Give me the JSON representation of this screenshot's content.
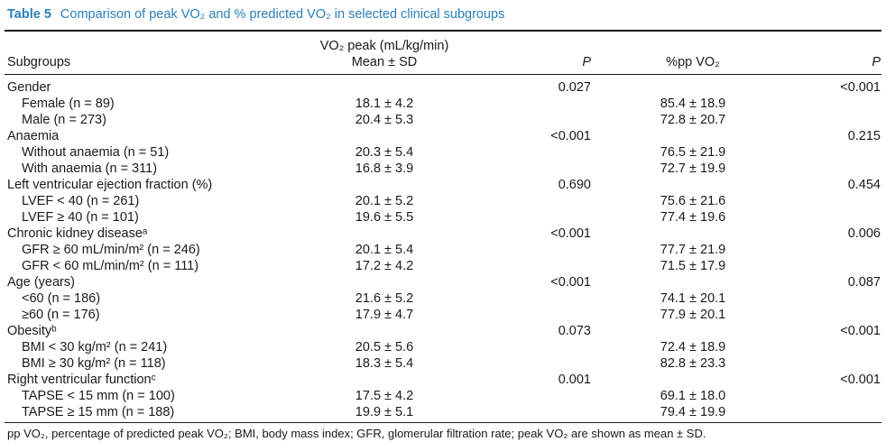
{
  "caption": {
    "label": "Table 5",
    "title": "Comparison of peak VO₂ and % predicted VO₂ in selected clinical subgroups"
  },
  "headers": {
    "subgroups": "Subgroups",
    "vo2_line1": "VO₂ peak (mL/kg/min)",
    "vo2_line2": "Mean ± SD",
    "p1": "P",
    "pp": "%pp VO₂",
    "p2": "P"
  },
  "rows": [
    {
      "label": "Gender",
      "indent": false,
      "vo2": "",
      "p1": "0.027",
      "pp": "",
      "p2": "<0.001"
    },
    {
      "label": "Female (n = 89)",
      "indent": true,
      "vo2": "18.1 ± 4.2",
      "p1": "",
      "pp": "85.4 ± 18.9",
      "p2": ""
    },
    {
      "label": "Male (n = 273)",
      "indent": true,
      "vo2": "20.4 ± 5.3",
      "p1": "",
      "pp": "72.8 ± 20.7",
      "p2": ""
    },
    {
      "label": "Anaemia",
      "indent": false,
      "vo2": "",
      "p1": "<0.001",
      "pp": "",
      "p2": "0.215"
    },
    {
      "label": "Without anaemia (n = 51)",
      "indent": true,
      "vo2": "20.3 ± 5.4",
      "p1": "",
      "pp": "76.5 ± 21.9",
      "p2": ""
    },
    {
      "label": "With anaemia (n = 311)",
      "indent": true,
      "vo2": "16.8 ± 3.9",
      "p1": "",
      "pp": "72.7 ± 19.9",
      "p2": ""
    },
    {
      "label": "Left ventricular ejection fraction (%)",
      "indent": false,
      "vo2": "",
      "p1": "0.690",
      "pp": "",
      "p2": "0.454"
    },
    {
      "label": "LVEF < 40 (n = 261)",
      "indent": true,
      "vo2": "20.1 ± 5.2",
      "p1": "",
      "pp": "75.6 ± 21.6",
      "p2": ""
    },
    {
      "label": "LVEF ≥ 40 (n = 101)",
      "indent": true,
      "vo2": "19.6 ± 5.5",
      "p1": "",
      "pp": "77.4 ± 19.6",
      "p2": ""
    },
    {
      "label": "Chronic kidney diseaseᵃ",
      "indent": false,
      "vo2": "",
      "p1": "<0.001",
      "pp": "",
      "p2": "0.006"
    },
    {
      "label": "GFR ≥ 60 mL/min/m² (n = 246)",
      "indent": true,
      "vo2": "20.1 ± 5.4",
      "p1": "",
      "pp": "77.7 ± 21.9",
      "p2": ""
    },
    {
      "label": "GFR < 60 mL/min/m² (n = 111)",
      "indent": true,
      "vo2": "17.2 ± 4.2",
      "p1": "",
      "pp": "71.5 ± 17.9",
      "p2": ""
    },
    {
      "label": "Age (years)",
      "indent": false,
      "vo2": "",
      "p1": "<0.001",
      "pp": "",
      "p2": "0.087"
    },
    {
      "label": "<60 (n = 186)",
      "indent": true,
      "vo2": "21.6 ± 5.2",
      "p1": "",
      "pp": "74.1 ± 20.1",
      "p2": ""
    },
    {
      "label": "≥60 (n = 176)",
      "indent": true,
      "vo2": "17.9 ± 4.7",
      "p1": "",
      "pp": "77.9 ± 20.1",
      "p2": ""
    },
    {
      "label": "Obesityᵇ",
      "indent": false,
      "vo2": "",
      "p1": "0.073",
      "pp": "",
      "p2": "<0.001"
    },
    {
      "label": "BMI < 30 kg/m² (n = 241)",
      "indent": true,
      "vo2": "20.5 ± 5.6",
      "p1": "",
      "pp": "72.4 ± 18.9",
      "p2": ""
    },
    {
      "label": "BMI ≥ 30 kg/m² (n = 118)",
      "indent": true,
      "vo2": "18.3 ± 5.4",
      "p1": "",
      "pp": "82.8 ± 23.3",
      "p2": ""
    },
    {
      "label": "Right ventricular functionᶜ",
      "indent": false,
      "vo2": "",
      "p1": "0.001",
      "pp": "",
      "p2": "<0.001"
    },
    {
      "label": "TAPSE < 15 mm (n = 100)",
      "indent": true,
      "vo2": "17.5 ± 4.2",
      "p1": "",
      "pp": "69.1 ± 18.0",
      "p2": ""
    },
    {
      "label": "TAPSE ≥ 15 mm (n = 188)",
      "indent": true,
      "vo2": "19.9 ± 5.1",
      "p1": "",
      "pp": "79.4 ± 19.9",
      "p2": ""
    }
  ],
  "footnote": "pp VO₂, percentage of predicted peak VO₂; BMI, body mass index; GFR, glomerular filtration rate; peak VO₂ are shown as mean ± SD.",
  "colors": {
    "caption": "#2a7fb8",
    "text": "#1a1a1a"
  }
}
